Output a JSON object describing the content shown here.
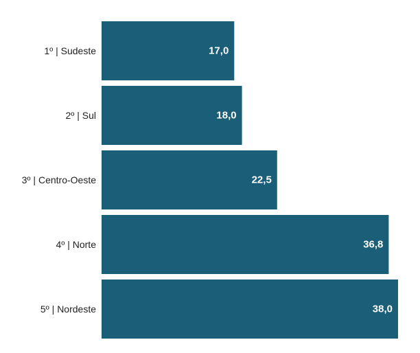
{
  "chart_data": {
    "type": "bar",
    "orientation": "horizontal",
    "categories": [
      "1º | Sudeste",
      "2º | Sul",
      "3º | Centro-Oeste",
      "4º | Norte",
      "5º | Nordeste"
    ],
    "values": [
      17.0,
      18.0,
      22.5,
      36.8,
      38.0
    ],
    "value_labels": [
      "17,0",
      "18,0",
      "22,5",
      "36,8",
      "38,0"
    ],
    "xlim": [
      0,
      38.0
    ],
    "grid": false,
    "legend": "none",
    "colors": {
      "bar": "#1b5e78",
      "value_label": "#ffffff",
      "category_label": "#222222"
    }
  }
}
